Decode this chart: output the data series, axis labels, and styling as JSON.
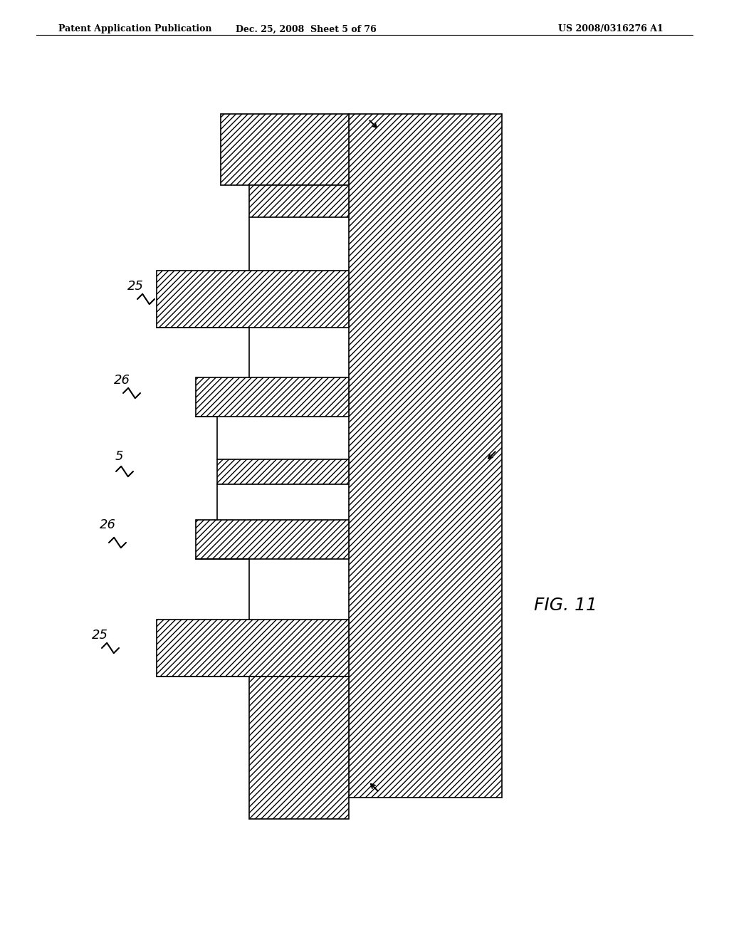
{
  "bg_color": "#ffffff",
  "line_color": "#000000",
  "header_left": "Patent Application Publication",
  "header_mid": "Dec. 25, 2008  Sheet 5 of 76",
  "header_right": "US 2008/0316276 A1",
  "fig_label": "FIG. 11",
  "hatch_pattern": "////",
  "hatch_pattern2": "////",
  "lw": 1.2
}
